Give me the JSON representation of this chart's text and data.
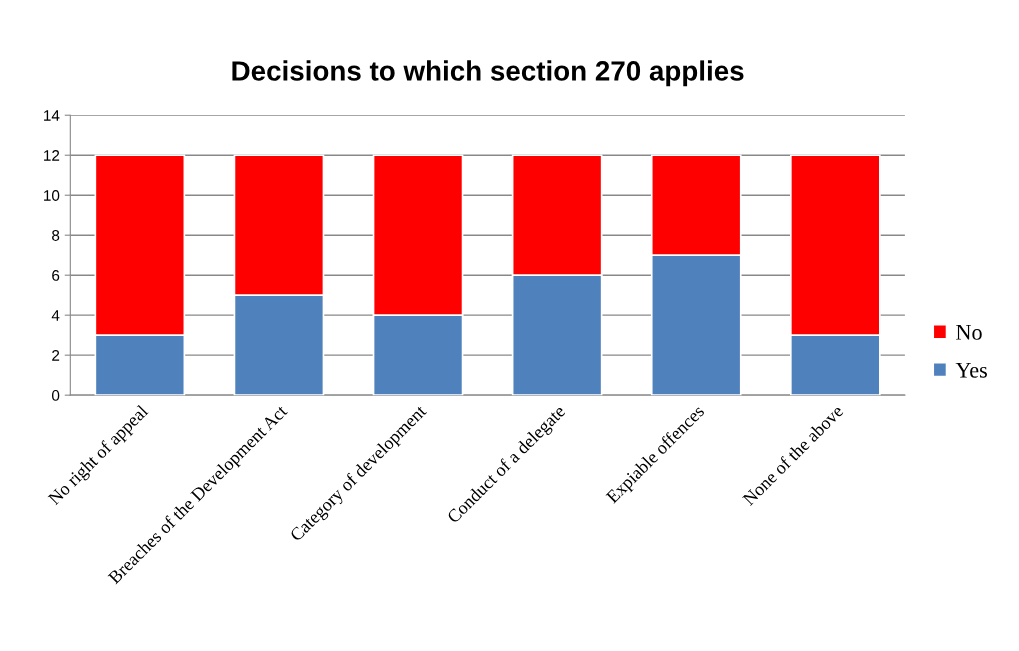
{
  "chart_data": {
    "type": "bar",
    "title": "Decisions to which section 270 applies",
    "stacked": true,
    "categories": [
      "No right of appeal",
      "Breaches of the Development Act",
      "Category of development",
      "Conduct of a delegate",
      "Expiable offences",
      "None of the above"
    ],
    "series": [
      {
        "name": "Yes",
        "color": "#4f81bd",
        "values": [
          3,
          5,
          4,
          6,
          7,
          3
        ]
      },
      {
        "name": "No",
        "color": "#ff0000",
        "values": [
          9,
          7,
          8,
          6,
          5,
          9
        ]
      }
    ],
    "ylim": [
      0,
      14
    ],
    "yticks": [
      0,
      2,
      4,
      6,
      8,
      10,
      12,
      14
    ],
    "grid": "y",
    "legend": "right"
  }
}
